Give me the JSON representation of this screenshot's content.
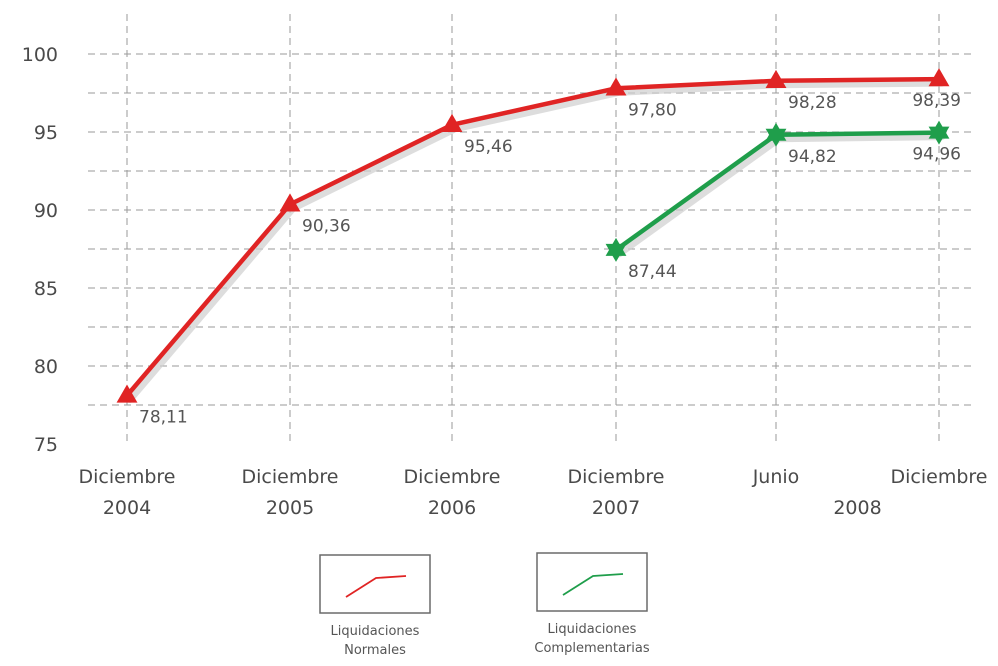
{
  "chart_data": {
    "type": "line",
    "categories": [
      [
        "Diciembre",
        "2004"
      ],
      [
        "Diciembre",
        "2005"
      ],
      [
        "Diciembre",
        "2006"
      ],
      [
        "Diciembre",
        "2007"
      ],
      [
        "Junio",
        ""
      ],
      [
        "Diciembre",
        ""
      ]
    ],
    "group_label": "2008",
    "ylim": [
      75,
      100
    ],
    "yticks": [
      "75",
      "80",
      "85",
      "90",
      "95",
      "100"
    ],
    "grid": true,
    "legend_position": "bottom",
    "series": [
      {
        "name": "Liquidaciones Normales",
        "legend_lines": [
          "Liquidaciones",
          "Normales"
        ],
        "color": "#e02424",
        "marker": "triangle",
        "values": [
          78.11,
          90.36,
          95.46,
          97.8,
          98.28,
          98.39
        ],
        "labels": [
          "78,11",
          "90,36",
          "95,46",
          "97,80",
          "98,28",
          "98,39"
        ]
      },
      {
        "name": "Liquidaciones Complementarias",
        "legend_lines": [
          "Liquidaciones",
          "Complementarias"
        ],
        "color": "#1f9e4b",
        "marker": "star",
        "values": [
          null,
          null,
          null,
          87.44,
          94.82,
          94.96
        ],
        "labels": [
          null,
          null,
          null,
          "87,44",
          "94,82",
          "94,96"
        ]
      }
    ]
  }
}
